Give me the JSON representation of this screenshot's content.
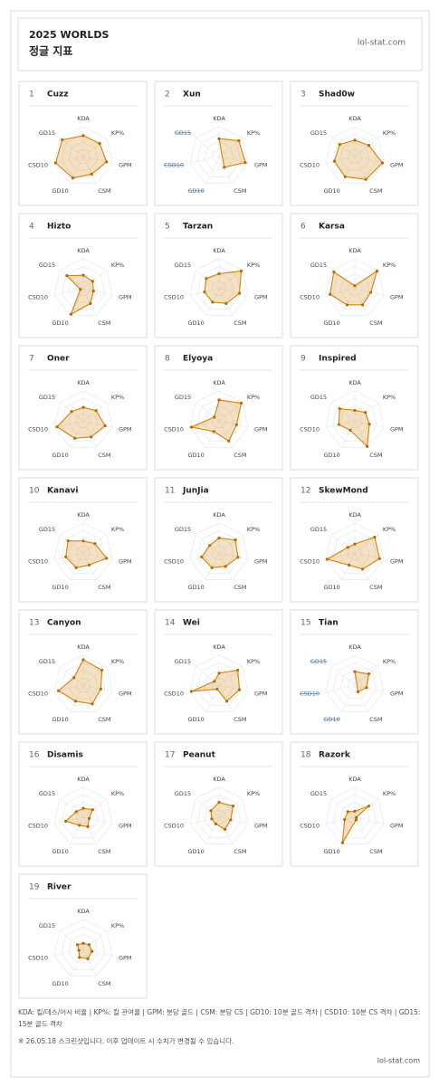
{
  "header": {
    "title": "2025 WORLDS",
    "subtitle": "정글 지표",
    "site": "lol-stat.com"
  },
  "chart_data": [
    {
      "type": "radar",
      "rank": 1,
      "title": "Cuzz",
      "categories": [
        "KDA",
        "KP%",
        "GPM",
        "CSM",
        "GD10",
        "CSD10",
        "GD15"
      ],
      "values": [
        70,
        70,
        80,
        65,
        80,
        95,
        90
      ],
      "color": "#d4820a",
      "rlim": [
        0,
        100
      ]
    },
    {
      "type": "radar",
      "rank": 2,
      "title": "Xun",
      "categories": [
        "KDA",
        "KP%",
        "GPM",
        "CSM",
        "GD10",
        "CSD10",
        "GD15"
      ],
      "values": [
        60,
        85,
        90,
        40,
        null,
        null,
        null
      ],
      "color": "#d4820a",
      "rlim": [
        0,
        100
      ]
    },
    {
      "type": "radar",
      "rank": 3,
      "title": "Shad0w",
      "categories": [
        "KDA",
        "KP%",
        "GPM",
        "CSM",
        "GD10",
        "CSD10",
        "GD15"
      ],
      "values": [
        55,
        60,
        95,
        85,
        75,
        70,
        65
      ],
      "color": "#d4820a",
      "rlim": [
        0,
        100
      ]
    },
    {
      "type": "radar",
      "rank": 4,
      "title": "Hizto",
      "categories": [
        "KDA",
        "KP%",
        "GPM",
        "CSM",
        "GD10",
        "CSD10",
        "GD15"
      ],
      "values": [
        45,
        40,
        35,
        55,
        95,
        10,
        70
      ],
      "color": "#d4820a",
      "rlim": [
        0,
        100
      ]
    },
    {
      "type": "radar",
      "rank": 5,
      "title": "Tarzan",
      "categories": [
        "KDA",
        "KP%",
        "GPM",
        "CSM",
        "GD10",
        "CSD10",
        "GD15"
      ],
      "values": [
        50,
        95,
        70,
        55,
        50,
        50,
        55
      ],
      "color": "#d4820a",
      "rlim": [
        0,
        100
      ]
    },
    {
      "type": "radar",
      "rank": 6,
      "title": "Karsa",
      "categories": [
        "KDA",
        "KP%",
        "GPM",
        "CSM",
        "GD10",
        "CSD10",
        "GD15"
      ],
      "values": [
        10,
        95,
        55,
        60,
        60,
        85,
        90
      ],
      "color": "#d4820a",
      "rlim": [
        0,
        100
      ]
    },
    {
      "type": "radar",
      "rank": 7,
      "title": "Oner",
      "categories": [
        "KDA",
        "KP%",
        "GPM",
        "CSM",
        "GD10",
        "CSD10",
        "GD15"
      ],
      "values": [
        45,
        55,
        75,
        60,
        65,
        90,
        50
      ],
      "color": "#d4820a",
      "rlim": [
        0,
        100
      ]
    },
    {
      "type": "radar",
      "rank": 8,
      "title": "Elyoya",
      "categories": [
        "KDA",
        "KP%",
        "GPM",
        "CSM",
        "GD10",
        "CSD10",
        "GD15"
      ],
      "values": [
        70,
        95,
        60,
        75,
        40,
        95,
        20
      ],
      "color": "#d4820a",
      "rlim": [
        0,
        100
      ]
    },
    {
      "type": "radar",
      "rank": 9,
      "title": "Inspired",
      "categories": [
        "KDA",
        "KP%",
        "GPM",
        "CSM",
        "GD10",
        "CSD10",
        "GD15"
      ],
      "values": [
        35,
        45,
        50,
        95,
        35,
        55,
        65
      ],
      "color": "#d4820a",
      "rlim": [
        0,
        100
      ]
    },
    {
      "type": "radar",
      "rank": 10,
      "title": "Kanavi",
      "categories": [
        "KDA",
        "KP%",
        "GPM",
        "CSM",
        "GD10",
        "CSD10",
        "GD15"
      ],
      "values": [
        40,
        50,
        80,
        45,
        55,
        60,
        65
      ],
      "color": "#d4820a",
      "rlim": [
        0,
        100
      ]
    },
    {
      "type": "radar",
      "rank": 11,
      "title": "JunJia",
      "categories": [
        "KDA",
        "KP%",
        "GPM",
        "CSM",
        "GD10",
        "CSD10",
        "GD15"
      ],
      "values": [
        50,
        70,
        65,
        50,
        55,
        60,
        40
      ],
      "color": "#d4820a",
      "rlim": [
        0,
        100
      ]
    },
    {
      "type": "radar",
      "rank": 12,
      "title": "SkewMond",
      "categories": [
        "KDA",
        "KP%",
        "GPM",
        "CSM",
        "GD10",
        "CSD10",
        "GD15"
      ],
      "values": [
        30,
        85,
        85,
        60,
        45,
        95,
        30
      ],
      "color": "#d4820a",
      "rlim": [
        0,
        100
      ]
    },
    {
      "type": "radar",
      "rank": 13,
      "title": "Canyon",
      "categories": [
        "KDA",
        "KP%",
        "GPM",
        "CSM",
        "GD10",
        "CSD10",
        "GD15"
      ],
      "values": [
        85,
        80,
        60,
        70,
        60,
        85,
        40
      ],
      "color": "#d4820a",
      "rlim": [
        0,
        100
      ]
    },
    {
      "type": "radar",
      "rank": 14,
      "title": "Wei",
      "categories": [
        "KDA",
        "KP%",
        "GPM",
        "CSM",
        "GD10",
        "CSD10",
        "GD15"
      ],
      "values": [
        40,
        80,
        70,
        60,
        15,
        95,
        20
      ],
      "color": "#d4820a",
      "rlim": [
        0,
        100
      ]
    },
    {
      "type": "radar",
      "rank": 15,
      "title": "Tian",
      "categories": [
        "KDA",
        "KP%",
        "GPM",
        "CSM",
        "GD10",
        "CSD10",
        "GD15"
      ],
      "values": [
        45,
        60,
        40,
        25,
        null,
        null,
        null
      ],
      "color": "#d4820a",
      "rlim": [
        0,
        100
      ]
    },
    {
      "type": "radar",
      "rank": 16,
      "title": "Disamis",
      "categories": [
        "KDA",
        "KP%",
        "GPM",
        "CSM",
        "GD10",
        "CSD10",
        "GD15"
      ],
      "values": [
        30,
        40,
        20,
        35,
        30,
        60,
        30
      ],
      "color": "#d4820a",
      "rlim": [
        0,
        100
      ]
    },
    {
      "type": "radar",
      "rank": 17,
      "title": "Peanut",
      "categories": [
        "KDA",
        "KP%",
        "GPM",
        "CSM",
        "GD10",
        "CSD10",
        "GD15"
      ],
      "values": [
        50,
        60,
        40,
        45,
        25,
        25,
        35
      ],
      "color": "#d4820a",
      "rlim": [
        0,
        100
      ]
    },
    {
      "type": "radar",
      "rank": 18,
      "title": "Razork",
      "categories": [
        "KDA",
        "KP%",
        "GPM",
        "CSM",
        "GD10",
        "CSD10",
        "GD15"
      ],
      "values": [
        20,
        60,
        5,
        10,
        95,
        35,
        30
      ],
      "color": "#d4820a",
      "rlim": [
        0,
        100
      ]
    },
    {
      "type": "radar",
      "rank": 19,
      "title": "River",
      "categories": [
        "KDA",
        "KP%",
        "GPM",
        "CSM",
        "GD10",
        "CSD10",
        "GD15"
      ],
      "values": [
        20,
        25,
        30,
        35,
        30,
        15,
        25
      ],
      "color": "#d4820a",
      "rlim": [
        0,
        100
      ]
    }
  ],
  "footer": {
    "legend": "KDA: 킬/데스/어시 비율 | KP%: 킬 관여율 | GPM: 분당 골드 | CSM: 분당 CS | GD10: 10분 골드 격차 | CSD10: 10분 CS 격차 | GD15: 15분 골드 격차",
    "note": "※ 26.05.18 스크린샷입니다. 이후 업데이트 시 수치가 변경될 수 있습니다.",
    "site": "lol-stat.com"
  }
}
